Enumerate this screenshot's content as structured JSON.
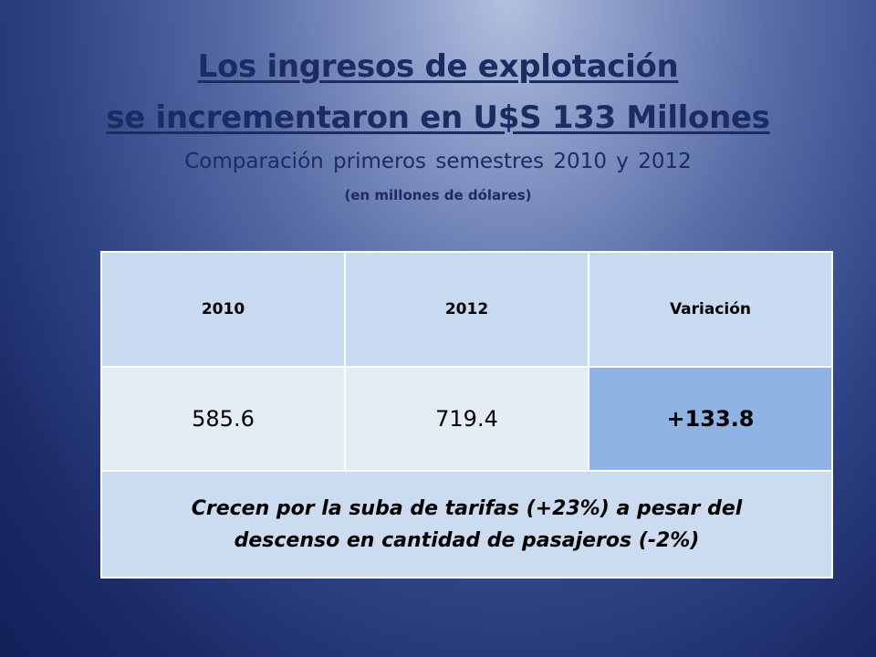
{
  "slide": {
    "title_line1": "Los ingresos de explotación",
    "title_line2": "se incrementaron en U$S 133 Millones",
    "subtitle": "Comparación primeros  semestres  2010  y 2012",
    "units_note": "(en millones de dólares)"
  },
  "table": {
    "headers": [
      "2010",
      "2012",
      "Variación"
    ],
    "values": [
      "585.6",
      "719.4",
      "+133.8"
    ],
    "note_line1": "Crecen por la suba de tarifas (+23%) a pesar del",
    "note_line2": "descenso en cantidad de pasajeros (-2%)"
  },
  "colors": {
    "title_text": "#1a2c62",
    "header_cell": "#c8daf0",
    "value_cell": "#e4ecf6",
    "variation_cell": "#8fb3e2",
    "note_cell": "#cbdcf1"
  }
}
